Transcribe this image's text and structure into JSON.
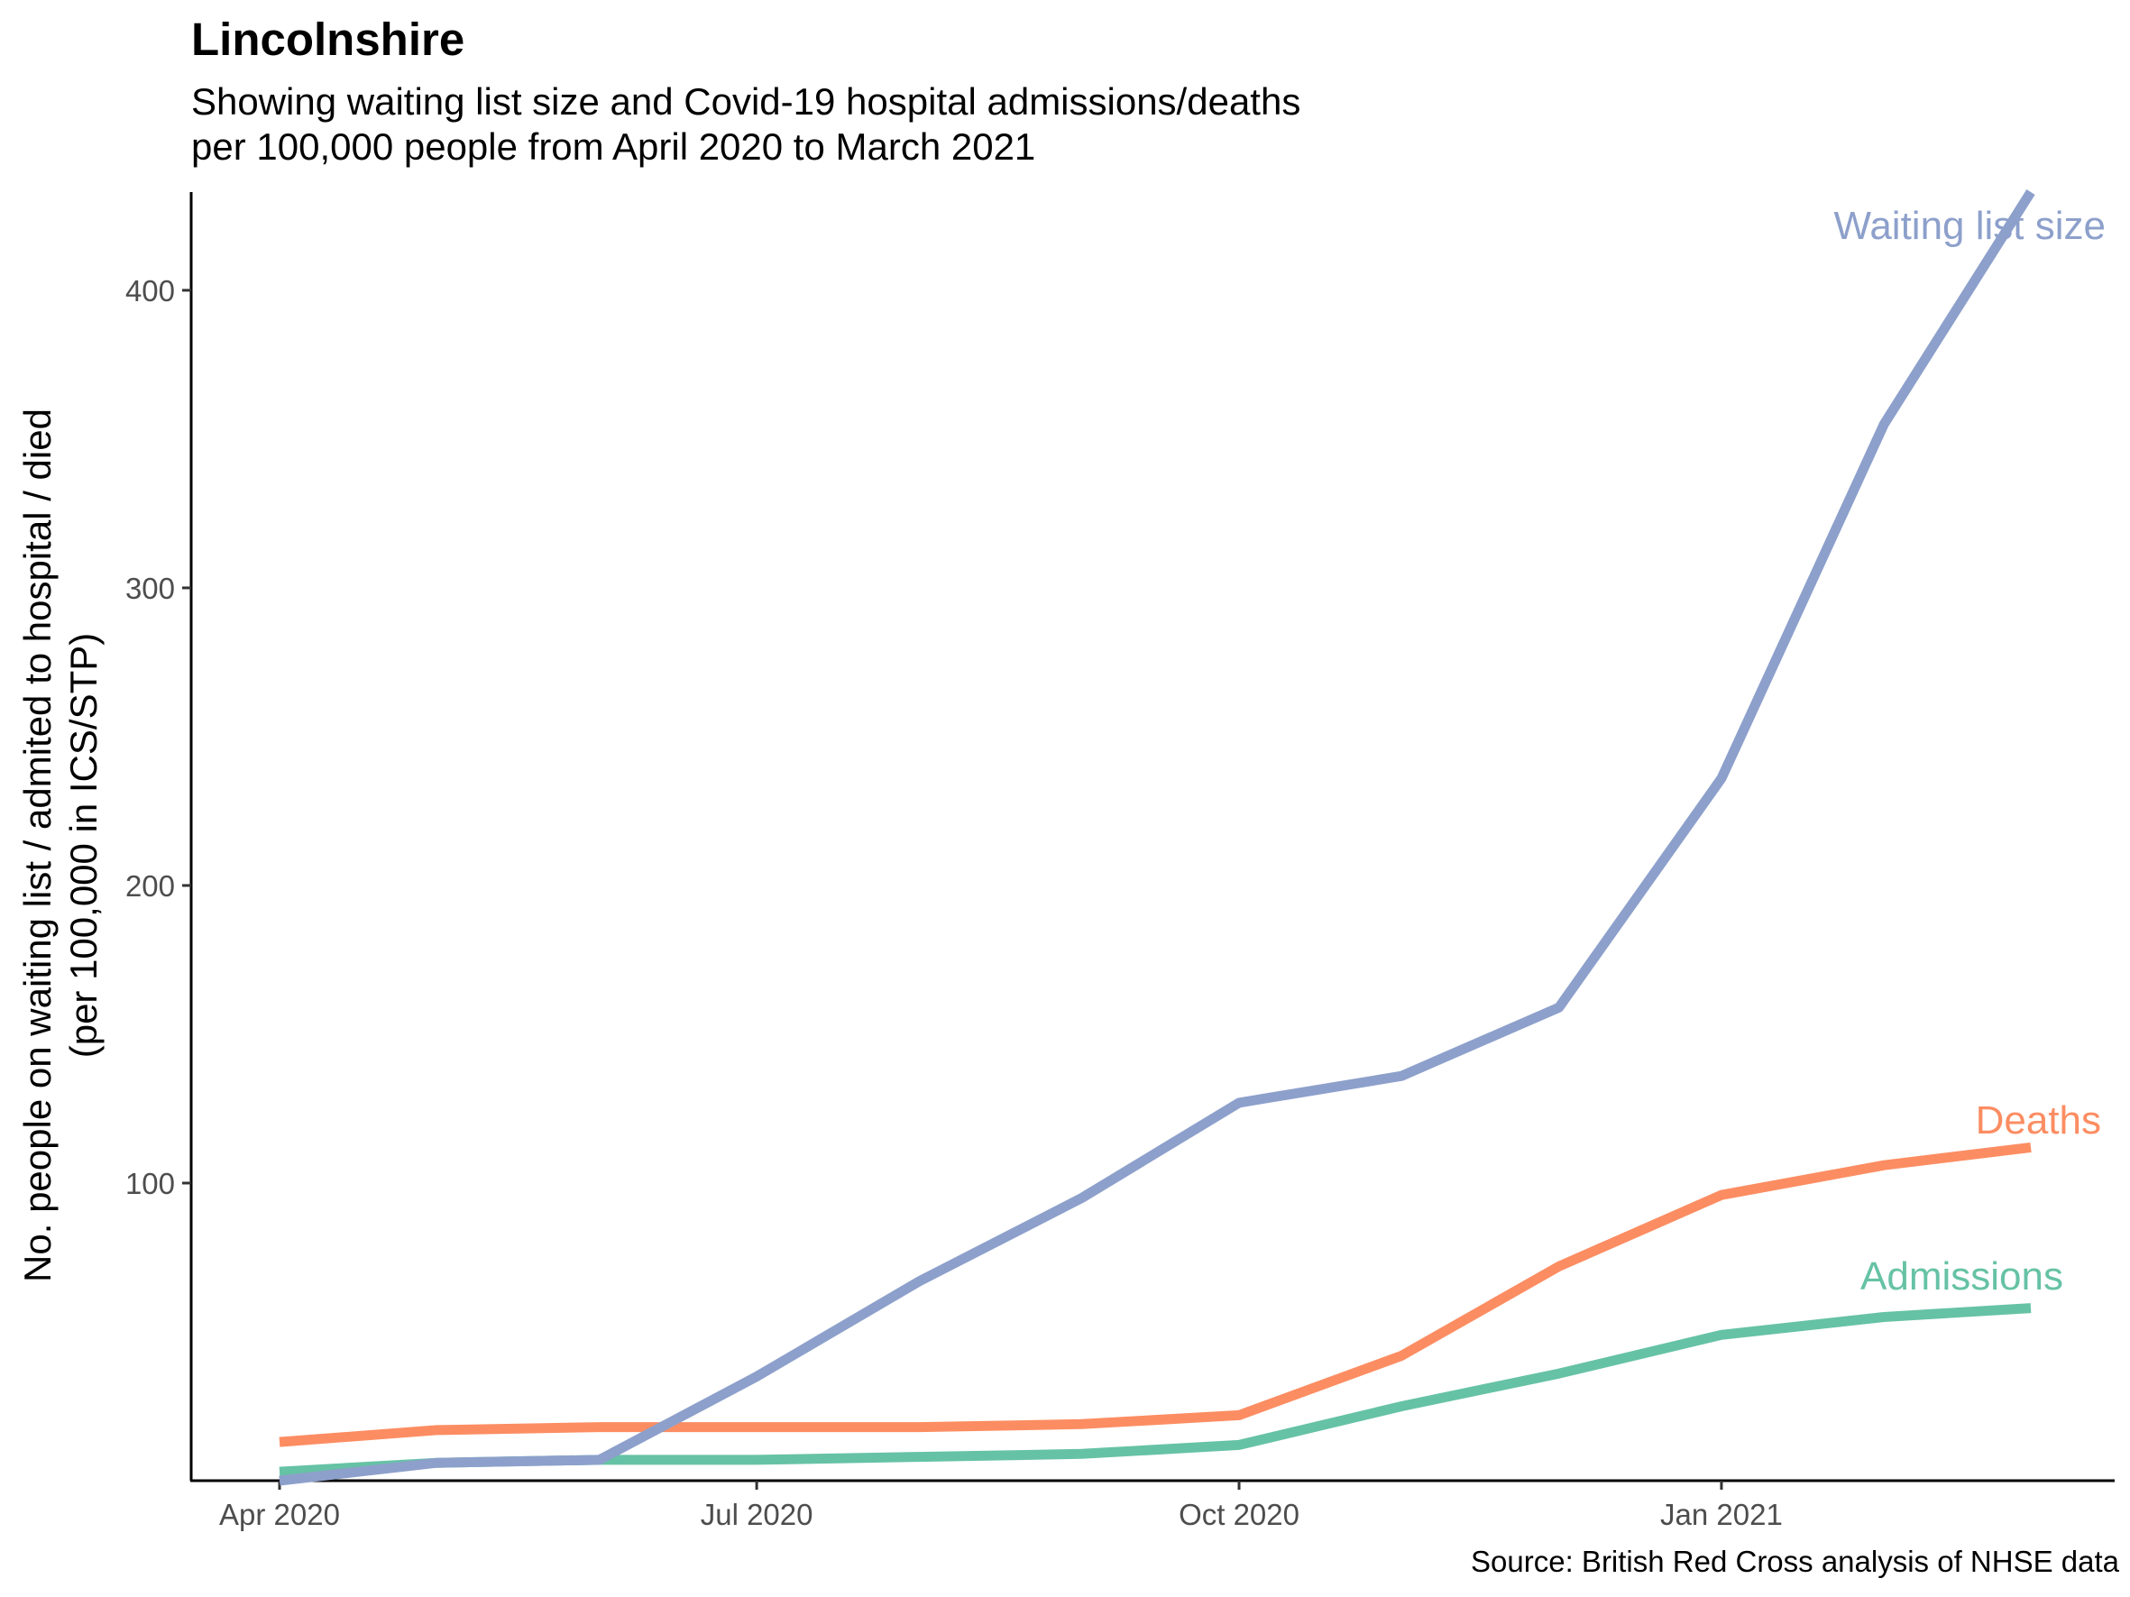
{
  "chart_data": {
    "type": "line",
    "title": "Lincolnshire",
    "subtitle_lines": [
      "Showing waiting list size and Covid-19 hospital admissions/deaths",
      "per 100,000 people from April 2020 to March 2021"
    ],
    "ylabel_lines": [
      "No. people on waiting list / admited to hospital / died",
      "(per 100,000 in ICS/STP)"
    ],
    "xlabel": "",
    "caption": "Source: British Red Cross analysis of NHSE data",
    "x": [
      "2020-04-01",
      "2020-05-01",
      "2020-06-01",
      "2020-07-01",
      "2020-08-01",
      "2020-09-01",
      "2020-10-01",
      "2020-11-01",
      "2020-12-01",
      "2021-01-01",
      "2021-02-01",
      "2021-03-01"
    ],
    "x_ticks": [
      {
        "date": "2020-04-01",
        "label": "Apr 2020"
      },
      {
        "date": "2020-07-01",
        "label": "Jul 2020"
      },
      {
        "date": "2020-10-01",
        "label": "Oct 2020"
      },
      {
        "date": "2021-01-01",
        "label": "Jan 2021"
      }
    ],
    "y_ticks": [
      100,
      200,
      300,
      400
    ],
    "ylim": [
      0,
      433
    ],
    "grid": false,
    "legend": "direct labels at line ends",
    "series": [
      {
        "name": "Waiting list size",
        "color": "#8DA0CB",
        "values": [
          0,
          6,
          7,
          35,
          67,
          95,
          127,
          136,
          159,
          236,
          355,
          433
        ]
      },
      {
        "name": "Deaths",
        "color": "#FC8D62",
        "values": [
          13,
          17,
          18,
          18,
          18,
          19,
          22,
          42,
          72,
          96,
          106,
          112
        ]
      },
      {
        "name": "Admissions",
        "color": "#66C2A5",
        "values": [
          3,
          6,
          7,
          7,
          8,
          9,
          12,
          25,
          36,
          49,
          55,
          58
        ]
      }
    ]
  }
}
